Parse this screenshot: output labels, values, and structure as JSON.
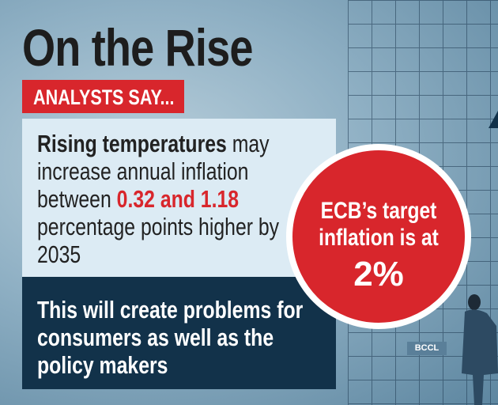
{
  "title": "On the Rise",
  "tag": "ANALYSTS SAY...",
  "finding": {
    "bold_lead": "Rising temperatures",
    "text1": " may increase annual inflation between ",
    "highlight": "0.32 and 1.18",
    "text2": " percentage points higher by 2035"
  },
  "consequence": "This will create problems for consumers as well as the policy makers",
  "circle": {
    "label": "ECB’s target inflation is at",
    "value": "2%"
  },
  "credit": "BCCL",
  "colors": {
    "accent_red": "#d8262c",
    "navy": "#12324a",
    "light_panel": "#dcebf4"
  }
}
